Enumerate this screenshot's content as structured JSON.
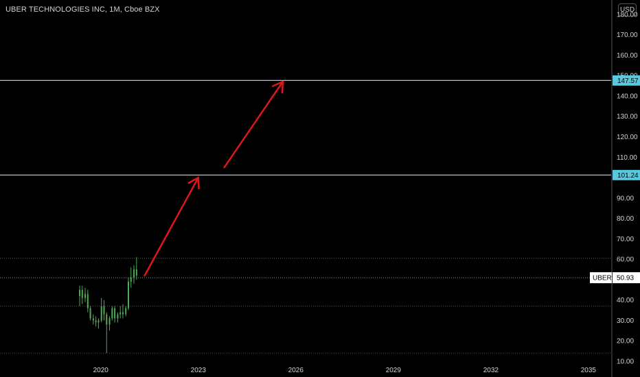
{
  "header": {
    "title": "UBER TECHNOLOGIES INC, 1M, Cboe BZX",
    "currency": "USD"
  },
  "colors": {
    "background": "#000000",
    "candle": "#4caf50",
    "level_line": "#a8c4dc",
    "level_badge": "#5ac8dc",
    "arrow": "#e0161b",
    "grid_dotted": "#555555"
  },
  "chart_data": {
    "type": "candlestick",
    "title": "UBER TECHNOLOGIES INC, 1M, Cboe BZX",
    "y_ticks": [
      "10.00",
      "20.00",
      "30.00",
      "40.00",
      "50.00",
      "60.00",
      "70.00",
      "80.00",
      "90.00",
      "100.00",
      "110.00",
      "120.00",
      "130.00",
      "140.00",
      "150.00",
      "160.00",
      "170.00",
      "180.00"
    ],
    "x_ticks": [
      "2020",
      "2023",
      "2026",
      "2029",
      "2032",
      "2035"
    ],
    "x_range": [
      2016.9,
      2035.7
    ],
    "y_range": [
      9,
      187
    ],
    "levels": [
      {
        "value": 147.57,
        "label": "147.57"
      },
      {
        "value": 101.24,
        "label": "101.24"
      }
    ],
    "last_price": {
      "symbol": "UBER",
      "label": "50.93",
      "value": 50.93
    },
    "dotted_levels": [
      60.5,
      37,
      14
    ],
    "candles": [
      {
        "t": 2019.35,
        "o": 42,
        "h": 47,
        "l": 37,
        "c": 45
      },
      {
        "t": 2019.43,
        "o": 45,
        "h": 47,
        "l": 38,
        "c": 41
      },
      {
        "t": 2019.52,
        "o": 41,
        "h": 46,
        "l": 39,
        "c": 43
      },
      {
        "t": 2019.6,
        "o": 43,
        "h": 45,
        "l": 34,
        "c": 36
      },
      {
        "t": 2019.68,
        "o": 36,
        "h": 37,
        "l": 30,
        "c": 31
      },
      {
        "t": 2019.77,
        "o": 31,
        "h": 33,
        "l": 28,
        "c": 30
      },
      {
        "t": 2019.85,
        "o": 30,
        "h": 32,
        "l": 27,
        "c": 29
      },
      {
        "t": 2019.93,
        "o": 29,
        "h": 31,
        "l": 26,
        "c": 30
      },
      {
        "t": 2020.02,
        "o": 30,
        "h": 41,
        "l": 29,
        "c": 37
      },
      {
        "t": 2020.1,
        "o": 37,
        "h": 40,
        "l": 30,
        "c": 33
      },
      {
        "t": 2020.18,
        "o": 33,
        "h": 34,
        "l": 14,
        "c": 28
      },
      {
        "t": 2020.27,
        "o": 28,
        "h": 32,
        "l": 25,
        "c": 31
      },
      {
        "t": 2020.35,
        "o": 31,
        "h": 37,
        "l": 30,
        "c": 36
      },
      {
        "t": 2020.43,
        "o": 36,
        "h": 37,
        "l": 29,
        "c": 31
      },
      {
        "t": 2020.52,
        "o": 31,
        "h": 34,
        "l": 29,
        "c": 33
      },
      {
        "t": 2020.6,
        "o": 33,
        "h": 37,
        "l": 31,
        "c": 34
      },
      {
        "t": 2020.68,
        "o": 34,
        "h": 38,
        "l": 31,
        "c": 33
      },
      {
        "t": 2020.77,
        "o": 33,
        "h": 37,
        "l": 32,
        "c": 36
      },
      {
        "t": 2020.85,
        "o": 36,
        "h": 51,
        "l": 35,
        "c": 49
      },
      {
        "t": 2020.93,
        "o": 49,
        "h": 56,
        "l": 46,
        "c": 51
      },
      {
        "t": 2021.02,
        "o": 51,
        "h": 57,
        "l": 48,
        "c": 55
      },
      {
        "t": 2021.1,
        "o": 55,
        "h": 61,
        "l": 50,
        "c": 52
      }
    ],
    "arrows": [
      {
        "from": [
          2021.35,
          52
        ],
        "to": [
          2023.0,
          100
        ]
      },
      {
        "from": [
          2023.8,
          105
        ],
        "to": [
          2025.6,
          147
        ]
      }
    ],
    "grid": false,
    "legend": "none"
  }
}
